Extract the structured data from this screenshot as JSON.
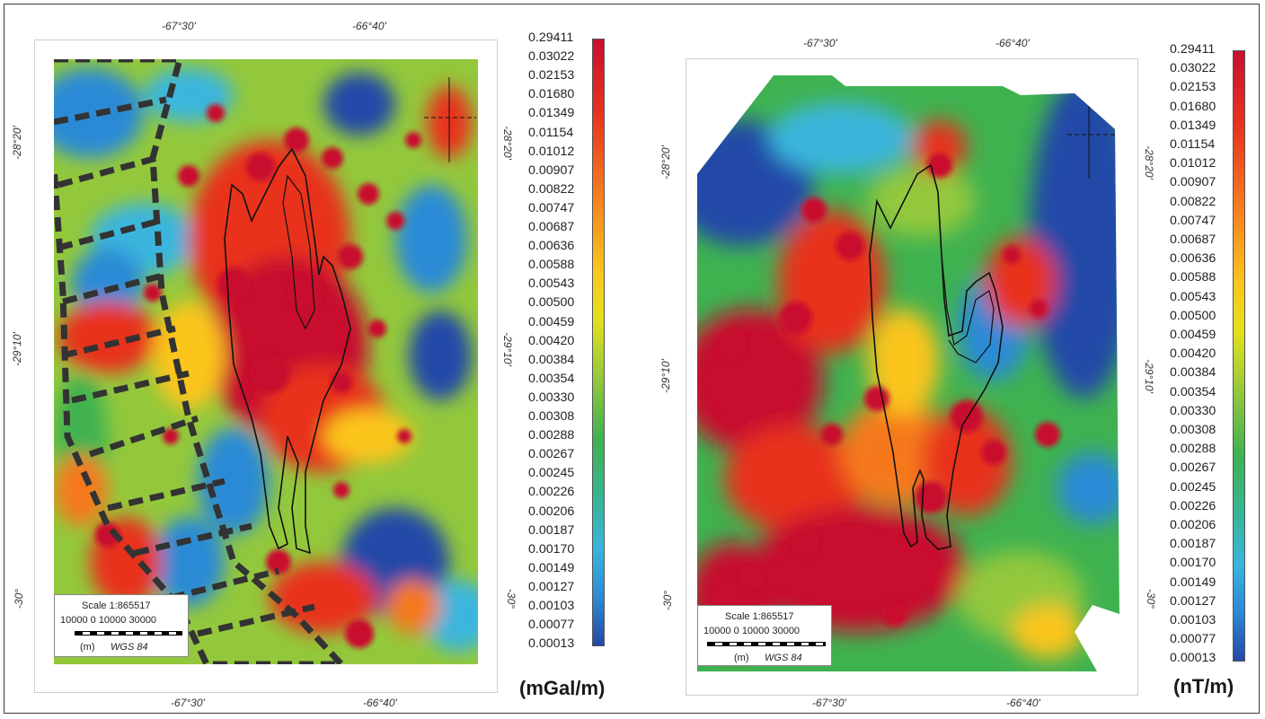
{
  "colorbar": {
    "labels": [
      "0.29411",
      "0.03022",
      "0.02153",
      "0.01680",
      "0.01349",
      "0.01154",
      "0.01012",
      "0.00907",
      "0.00822",
      "0.00747",
      "0.00687",
      "0.00636",
      "0.00588",
      "0.00543",
      "0.00500",
      "0.00459",
      "0.00420",
      "0.00384",
      "0.00354",
      "0.00330",
      "0.00308",
      "0.00288",
      "0.00267",
      "0.00245",
      "0.00226",
      "0.00206",
      "0.00187",
      "0.00170",
      "0.00149",
      "0.00127",
      "0.00103",
      "0.00077",
      "0.00013"
    ],
    "colors": [
      "#c8102e",
      "#e8321e",
      "#f5791f",
      "#fbc51d",
      "#e4e11a",
      "#93c83c",
      "#3fb250",
      "#37b596",
      "#3ab5dd",
      "#2c8ad6",
      "#2448a8"
    ]
  },
  "left_map": {
    "top_lon_labels": [
      "-67°30'",
      "-66°40'"
    ],
    "bottom_lon_labels": [
      "-67°30'",
      "-66°40'"
    ],
    "left_lat_labels": [
      "-28°20'",
      "-29°10'",
      "-30°"
    ],
    "right_lat_labels": [
      "-28°20'",
      "-29°10'",
      "-30°"
    ],
    "unit": "(mGal/m)",
    "scale": {
      "title": "Scale 1:865517",
      "ticks": "10000  0  10000      30000",
      "units": "(m)",
      "datum": "WGS 84"
    }
  },
  "right_map": {
    "top_lon_labels": [
      "-67°30'",
      "-66°40'"
    ],
    "bottom_lon_labels": [
      "-67°30'",
      "-66°40'"
    ],
    "left_lat_labels": [
      "-28°20'",
      "-29°10'",
      "-30°"
    ],
    "right_lat_labels": [
      "-28°20'",
      "-29°10'",
      "-30°"
    ],
    "unit": "(nT/m)",
    "scale": {
      "title": "Scale 1:865517",
      "ticks": "10000  0  10000      30000",
      "units": "(m)",
      "datum": "WGS 84"
    }
  }
}
